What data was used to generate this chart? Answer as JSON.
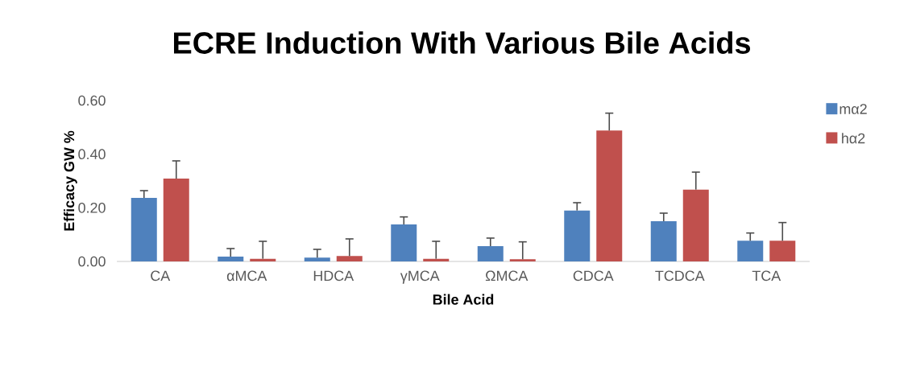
{
  "chart_data": {
    "type": "bar",
    "title": "ECRE Induction With Various Bile Acids",
    "xlabel": "Bile Acid",
    "ylabel": "Efficacy GW %",
    "categories": [
      "CA",
      "αMCA",
      "HDCA",
      "γMCA",
      "ΩMCA",
      "CDCA",
      "TCDCA",
      "TCA"
    ],
    "series": [
      {
        "name": "mα2",
        "color": "#4f81bd",
        "values": [
          0.237,
          0.018,
          0.014,
          0.138,
          0.057,
          0.19,
          0.15,
          0.077
        ],
        "errors": [
          [
            0.237,
            0.264
          ],
          [
            0.018,
            0.048
          ],
          [
            0.014,
            0.045
          ],
          [
            0.138,
            0.166
          ],
          [
            0.057,
            0.087
          ],
          [
            0.19,
            0.219
          ],
          [
            0.15,
            0.18
          ],
          [
            0.077,
            0.106
          ]
        ]
      },
      {
        "name": "hα2",
        "color": "#c0504d",
        "values": [
          0.309,
          0.01,
          0.02,
          0.01,
          0.008,
          0.488,
          0.268,
          0.077
        ],
        "errors": [
          [
            0.309,
            0.375
          ],
          [
            0.01,
            0.075
          ],
          [
            0.02,
            0.084
          ],
          [
            0.01,
            0.075
          ],
          [
            0.008,
            0.073
          ],
          [
            0.488,
            0.553
          ],
          [
            0.268,
            0.333
          ],
          [
            0.077,
            0.145
          ]
        ]
      }
    ],
    "ylim": [
      0,
      0.6
    ],
    "yticks": [
      {
        "value": 0,
        "label": "0.00"
      },
      {
        "value": 0.2,
        "label": "0.20"
      },
      {
        "value": 0.4,
        "label": "0.40"
      },
      {
        "value": 0.6,
        "label": "0.60"
      }
    ],
    "grid": false,
    "legend": "top right"
  }
}
